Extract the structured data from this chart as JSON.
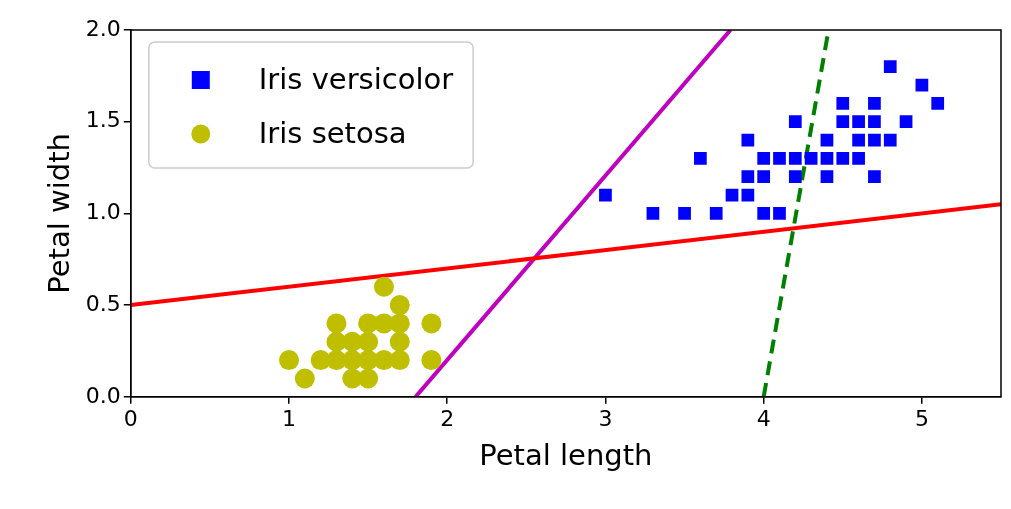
{
  "chart_data": {
    "type": "scatter",
    "xlabel": "Petal length",
    "ylabel": "Petal width",
    "xlim": [
      0,
      5.5
    ],
    "ylim": [
      0,
      2.0
    ],
    "xticks": [
      0,
      1,
      2,
      3,
      4,
      5
    ],
    "yticks": [
      {
        "value": 0,
        "label": "0.0"
      },
      {
        "value": 0.5,
        "label": "0.5"
      },
      {
        "value": 1,
        "label": "1.0"
      },
      {
        "value": 1.5,
        "label": "1.5"
      },
      {
        "value": 2,
        "label": "2.0"
      }
    ],
    "grid": false,
    "legend": "top left",
    "series": [
      {
        "name": "Iris versicolor",
        "color": "#0000ff",
        "marker": "square",
        "x": [
          3.0,
          3.3,
          3.5,
          3.7,
          4.0,
          4.1,
          3.8,
          3.9,
          3.9,
          4.0,
          4.2,
          4.4,
          4.7,
          3.6,
          4.0,
          4.1,
          4.2,
          4.3,
          4.4,
          4.5,
          4.6,
          3.9,
          4.4,
          4.6,
          4.7,
          4.8,
          4.2,
          4.5,
          4.6,
          4.7,
          4.9,
          4.5,
          4.7,
          5.1,
          5.0,
          4.8
        ],
        "values": [
          1.1,
          1.0,
          1.0,
          1.0,
          1.0,
          1.0,
          1.1,
          1.1,
          1.2,
          1.2,
          1.2,
          1.2,
          1.2,
          1.3,
          1.3,
          1.3,
          1.3,
          1.3,
          1.3,
          1.3,
          1.3,
          1.4,
          1.4,
          1.4,
          1.4,
          1.4,
          1.5,
          1.5,
          1.5,
          1.5,
          1.5,
          1.6,
          1.6,
          1.6,
          1.7,
          1.8
        ]
      },
      {
        "name": "Iris setosa",
        "color": "#bfbf00",
        "marker": "circle",
        "x": [
          1.0,
          1.2,
          1.3,
          1.4,
          1.5,
          1.6,
          1.7,
          1.9,
          1.1,
          1.4,
          1.5,
          1.3,
          1.4,
          1.5,
          1.7,
          1.3,
          1.5,
          1.6,
          1.7,
          1.9,
          1.7,
          1.6
        ],
        "values": [
          0.2,
          0.2,
          0.2,
          0.2,
          0.2,
          0.2,
          0.2,
          0.2,
          0.1,
          0.1,
          0.1,
          0.3,
          0.3,
          0.3,
          0.3,
          0.4,
          0.4,
          0.4,
          0.4,
          0.4,
          0.5,
          0.6
        ]
      },
      {
        "type": "line",
        "color": "#ff0000",
        "marker": "none",
        "line_style": "solid",
        "x": [
          0,
          5.5
        ],
        "values": [
          0.5,
          1.05
        ]
      },
      {
        "type": "line",
        "color": "#bf00bf",
        "marker": "none",
        "line_style": "solid",
        "x": [
          1.8,
          3.79
        ],
        "values": [
          0,
          2.0
        ]
      },
      {
        "type": "line",
        "color": "#008000",
        "marker": "none",
        "line_style": "dashed",
        "x": [
          4.0,
          4.41
        ],
        "values": [
          0,
          2.0
        ]
      }
    ]
  }
}
